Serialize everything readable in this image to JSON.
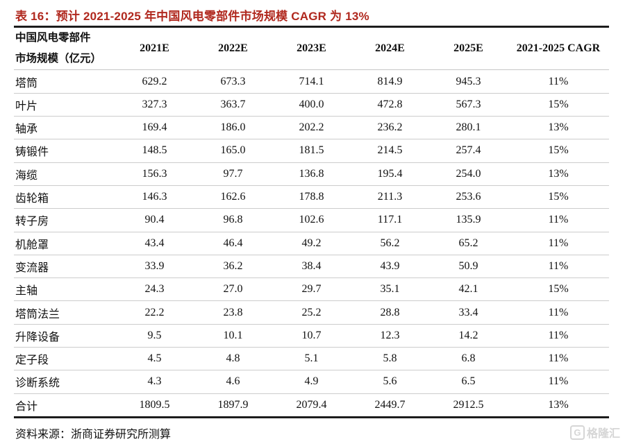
{
  "title": "表 16：预计 2021-2025 年中国风电零部件市场规模 CAGR 为 13%",
  "table": {
    "header": {
      "label_line1": "中国风电零部件",
      "label_line2": "市场规模（亿元）",
      "columns": [
        "2021E",
        "2022E",
        "2023E",
        "2024E",
        "2025E",
        "2021-2025 CAGR"
      ]
    },
    "rows": [
      {
        "label": "塔筒",
        "values": [
          "629.2",
          "673.3",
          "714.1",
          "814.9",
          "945.3",
          "11%"
        ]
      },
      {
        "label": "叶片",
        "values": [
          "327.3",
          "363.7",
          "400.0",
          "472.8",
          "567.3",
          "15%"
        ]
      },
      {
        "label": "轴承",
        "values": [
          "169.4",
          "186.0",
          "202.2",
          "236.2",
          "280.1",
          "13%"
        ]
      },
      {
        "label": "铸锻件",
        "values": [
          "148.5",
          "165.0",
          "181.5",
          "214.5",
          "257.4",
          "15%"
        ]
      },
      {
        "label": "海缆",
        "values": [
          "156.3",
          "97.7",
          "136.8",
          "195.4",
          "254.0",
          "13%"
        ]
      },
      {
        "label": "齿轮箱",
        "values": [
          "146.3",
          "162.6",
          "178.8",
          "211.3",
          "253.6",
          "15%"
        ]
      },
      {
        "label": "转子房",
        "values": [
          "90.4",
          "96.8",
          "102.6",
          "117.1",
          "135.9",
          "11%"
        ]
      },
      {
        "label": "机舱罩",
        "values": [
          "43.4",
          "46.4",
          "49.2",
          "56.2",
          "65.2",
          "11%"
        ]
      },
      {
        "label": "变流器",
        "values": [
          "33.9",
          "36.2",
          "38.4",
          "43.9",
          "50.9",
          "11%"
        ]
      },
      {
        "label": "主轴",
        "values": [
          "24.3",
          "27.0",
          "29.7",
          "35.1",
          "42.1",
          "15%"
        ]
      },
      {
        "label": "塔筒法兰",
        "values": [
          "22.2",
          "23.8",
          "25.2",
          "28.8",
          "33.4",
          "11%"
        ]
      },
      {
        "label": "升降设备",
        "values": [
          "9.5",
          "10.1",
          "10.7",
          "12.3",
          "14.2",
          "11%"
        ]
      },
      {
        "label": "定子段",
        "values": [
          "4.5",
          "4.8",
          "5.1",
          "5.8",
          "6.8",
          "11%"
        ]
      },
      {
        "label": "诊断系统",
        "values": [
          "4.3",
          "4.6",
          "4.9",
          "5.6",
          "6.5",
          "11%"
        ]
      },
      {
        "label": "合计",
        "values": [
          "1809.5",
          "1897.9",
          "2079.4",
          "2449.7",
          "2912.5",
          "13%"
        ]
      }
    ]
  },
  "source": "资料来源：浙商证券研究所测算",
  "watermark": {
    "icon": "G",
    "text": "格隆汇"
  },
  "colors": {
    "title_red": "#B0281E",
    "rule_dark": "#1c1c1c",
    "rule_light": "#cccccc",
    "text": "#111111",
    "watermark_gray": "#d6d6d6"
  }
}
